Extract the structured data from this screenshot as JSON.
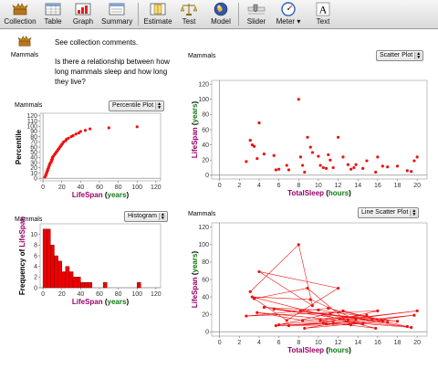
{
  "toolbar": {
    "items": [
      {
        "label": "Collection",
        "icon": "collection-icon"
      },
      {
        "label": "Table",
        "icon": "table-icon"
      },
      {
        "label": "Graph",
        "icon": "graph-icon"
      },
      {
        "label": "Summary",
        "icon": "summary-icon"
      },
      {
        "label": "Estimate",
        "icon": "estimate-icon"
      },
      {
        "label": "Test",
        "icon": "scales-icon"
      },
      {
        "label": "Model",
        "icon": "globe-icon"
      },
      {
        "label": "Slider",
        "icon": "slider-icon"
      },
      {
        "label": "Meter",
        "icon": "meter-icon"
      },
      {
        "label": "Text",
        "icon": "text-icon"
      }
    ]
  },
  "doc": {
    "collection_name": "Mammals",
    "line1": "See collection comments.",
    "line2": "Is there a relationship between how",
    "line3": "long mammals sleep and how long",
    "line4": "they live?"
  },
  "colors": {
    "point": "#ee1111",
    "attr": "#990066",
    "unit": "#117711",
    "bar": "#ee0000"
  },
  "plots": {
    "percentile": {
      "collection": "Mammals",
      "type": "Percentile Plot"
    },
    "scatter": {
      "collection": "Mammals",
      "type": "Scatter Plot"
    },
    "histogram": {
      "collection": "Mammals",
      "type": "Histogram"
    },
    "linescatter": {
      "collection": "Mammals",
      "type": "Line Scatter Plot"
    }
  },
  "chart_data": [
    {
      "type": "scatter",
      "name": "percentile",
      "x_label_attr": "LifeSpan",
      "x_label_unit": "years",
      "ylabel": "Percentile",
      "xlim": [
        -3,
        125
      ],
      "ylim": [
        -5,
        125
      ],
      "xticks": [
        0,
        20,
        40,
        60,
        80,
        100,
        120
      ],
      "yticks": [
        0,
        10,
        20,
        30,
        40,
        50,
        60,
        70,
        80,
        90,
        100,
        110,
        120
      ],
      "points": [
        [
          2,
          2
        ],
        [
          3,
          5
        ],
        [
          3,
          7
        ],
        [
          4,
          10
        ],
        [
          4,
          12
        ],
        [
          5,
          15
        ],
        [
          5,
          17
        ],
        [
          6,
          20
        ],
        [
          6,
          22
        ],
        [
          7,
          25
        ],
        [
          7,
          27
        ],
        [
          8,
          30
        ],
        [
          9,
          32
        ],
        [
          9,
          35
        ],
        [
          10,
          37
        ],
        [
          10,
          40
        ],
        [
          11,
          42
        ],
        [
          12,
          45
        ],
        [
          13,
          47
        ],
        [
          14,
          50
        ],
        [
          15,
          52
        ],
        [
          16,
          55
        ],
        [
          17,
          57
        ],
        [
          18,
          60
        ],
        [
          19,
          62
        ],
        [
          20,
          65
        ],
        [
          21,
          67
        ],
        [
          22,
          70
        ],
        [
          24,
          72
        ],
        [
          25,
          75
        ],
        [
          27,
          77
        ],
        [
          30,
          80
        ],
        [
          32,
          82
        ],
        [
          35,
          85
        ],
        [
          38,
          87
        ],
        [
          40,
          90
        ],
        [
          45,
          92
        ],
        [
          50,
          95
        ],
        [
          70,
          97
        ],
        [
          100,
          99
        ]
      ]
    },
    {
      "type": "scatter",
      "name": "scatter",
      "x_label_attr": "TotalSleep",
      "x_label_unit": "hours",
      "y_label_attr": "LifeSpan",
      "y_label_unit": "years",
      "xlim": [
        -0.8,
        21
      ],
      "ylim": [
        -5,
        125
      ],
      "xticks": [
        0,
        2,
        4,
        6,
        8,
        10,
        12,
        14,
        16,
        18,
        20
      ],
      "yticks": [
        0,
        20,
        40,
        60,
        80,
        100,
        120
      ],
      "points": [
        [
          2.7,
          18
        ],
        [
          3.1,
          46
        ],
        [
          3.3,
          40
        ],
        [
          3.5,
          38
        ],
        [
          3.8,
          22
        ],
        [
          4.0,
          69
        ],
        [
          4.5,
          28
        ],
        [
          5.5,
          26
        ],
        [
          5.7,
          7
        ],
        [
          6.0,
          8
        ],
        [
          6.8,
          13
        ],
        [
          7.0,
          7
        ],
        [
          8.0,
          100
        ],
        [
          8.2,
          24
        ],
        [
          8.4,
          13
        ],
        [
          8.6,
          4
        ],
        [
          8.9,
          50
        ],
        [
          9.2,
          37
        ],
        [
          9.4,
          30
        ],
        [
          10.0,
          25
        ],
        [
          10.2,
          13
        ],
        [
          10.5,
          10
        ],
        [
          10.8,
          9
        ],
        [
          11.0,
          27
        ],
        [
          11.2,
          20
        ],
        [
          11.5,
          10
        ],
        [
          12.0,
          50
        ],
        [
          12.5,
          24
        ],
        [
          13.0,
          14
        ],
        [
          13.3,
          8
        ],
        [
          13.6,
          10
        ],
        [
          13.8,
          14
        ],
        [
          14.5,
          9
        ],
        [
          14.9,
          19
        ],
        [
          15.8,
          4
        ],
        [
          16.0,
          24
        ],
        [
          16.5,
          12
        ],
        [
          17.0,
          11
        ],
        [
          18.0,
          12
        ],
        [
          19.0,
          6
        ],
        [
          19.4,
          5
        ],
        [
          19.7,
          19
        ],
        [
          20.0,
          24
        ]
      ]
    },
    {
      "type": "bar",
      "name": "histogram",
      "x_label_attr": "LifeSpan",
      "x_label_unit": "years",
      "y_label_prefix": "Frequency of",
      "y_label_attr": "LifeSpan",
      "bin_width": 4,
      "bin_start": 0,
      "values": [
        11,
        11,
        8,
        6,
        5,
        3,
        4,
        3,
        2,
        2,
        1,
        1,
        1,
        0,
        0,
        0,
        1,
        0,
        0,
        0,
        0,
        0,
        0,
        0,
        0,
        1
      ],
      "xlim": [
        -3,
        125
      ],
      "ylim": [
        0,
        12
      ],
      "xticks": [
        0,
        20,
        40,
        60,
        80,
        100,
        120
      ],
      "yticks": [
        0,
        2,
        4,
        6,
        8,
        10
      ]
    },
    {
      "type": "line",
      "name": "linescatter",
      "x_label_attr": "TotalSleep",
      "x_label_unit": "hours",
      "y_label_attr": "LifeSpan",
      "y_label_unit": "years",
      "xlim": [
        -0.8,
        21
      ],
      "ylim": [
        -5,
        125
      ],
      "xticks": [
        0,
        2,
        4,
        6,
        8,
        10,
        12,
        14,
        16,
        18,
        20
      ],
      "yticks": [
        0,
        20,
        40,
        60,
        80,
        100,
        120
      ],
      "points": [
        [
          3.1,
          46
        ],
        [
          8.0,
          100
        ],
        [
          9.4,
          30
        ],
        [
          4.0,
          69
        ],
        [
          12.0,
          50
        ],
        [
          6.8,
          13
        ],
        [
          3.5,
          38
        ],
        [
          8.9,
          50
        ],
        [
          13.3,
          8
        ],
        [
          5.7,
          7
        ],
        [
          10.5,
          10
        ],
        [
          16.0,
          24
        ],
        [
          2.7,
          18
        ],
        [
          11.0,
          27
        ],
        [
          19.0,
          6
        ],
        [
          3.8,
          22
        ],
        [
          8.4,
          13
        ],
        [
          14.9,
          19
        ],
        [
          6.0,
          8
        ],
        [
          12.5,
          24
        ],
        [
          17.0,
          11
        ],
        [
          4.5,
          28
        ],
        [
          10.0,
          25
        ],
        [
          18.0,
          12
        ],
        [
          5.5,
          26
        ],
        [
          13.0,
          14
        ],
        [
          20.0,
          24
        ],
        [
          7.0,
          7
        ],
        [
          11.5,
          10
        ],
        [
          15.8,
          4
        ],
        [
          3.3,
          40
        ],
        [
          9.2,
          37
        ],
        [
          13.8,
          14
        ],
        [
          8.6,
          4
        ],
        [
          16.5,
          12
        ],
        [
          8.2,
          24
        ],
        [
          11.2,
          20
        ],
        [
          19.4,
          5
        ],
        [
          10.2,
          13
        ],
        [
          14.5,
          9
        ],
        [
          10.8,
          9
        ],
        [
          19.7,
          19
        ],
        [
          13.6,
          10
        ]
      ]
    }
  ]
}
